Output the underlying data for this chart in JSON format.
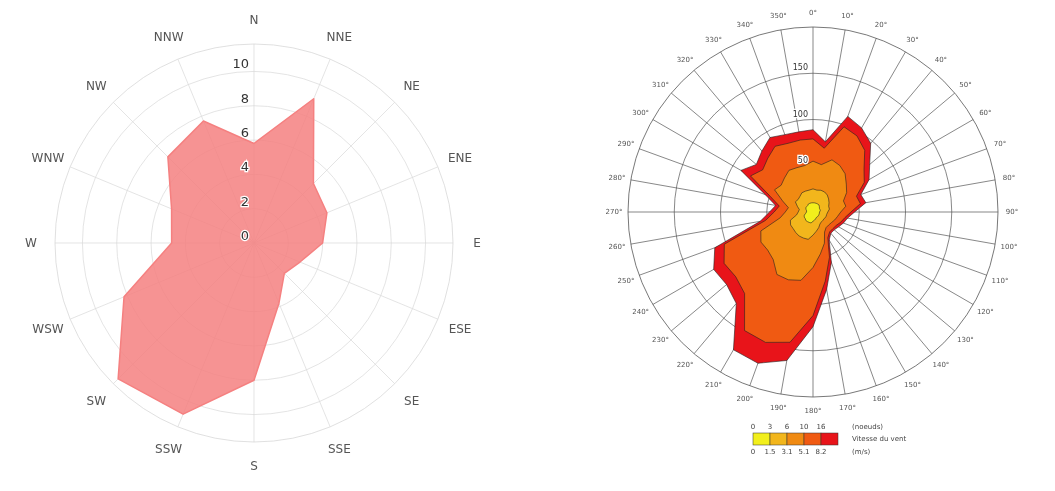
{
  "chart_data": [
    {
      "type": "radar",
      "categories": [
        "N",
        "NNE",
        "NE",
        "ENE",
        "E",
        "ESE",
        "SE",
        "SSE",
        "S",
        "SSW",
        "SW",
        "WSW",
        "W",
        "WNW",
        "NW",
        "NNW"
      ],
      "series": [
        {
          "color": "#f58080",
          "values": [
            5.8,
            9.1,
            4.9,
            4.6,
            4.0,
            2.9,
            2.5,
            3.8,
            8.0,
            10.8,
            11.2,
            8.2,
            4.8,
            5.2,
            7.1,
            7.7
          ]
        }
      ],
      "ylim": [
        0,
        11.6
      ],
      "yticks": [
        0,
        2,
        4,
        6,
        8,
        10
      ],
      "grid": true
    },
    {
      "type": "radar",
      "categories": [
        "0°",
        "10°",
        "20°",
        "30°",
        "40°",
        "50°",
        "60°",
        "70°",
        "80°",
        "90°",
        "100°",
        "110°",
        "120°",
        "130°",
        "140°",
        "150°",
        "160°",
        "170°",
        "180°",
        "190°",
        "200°",
        "210°",
        "220°",
        "230°",
        "240°",
        "250°",
        "260°",
        "270°",
        "280°",
        "290°",
        "300°",
        "310°",
        "320°",
        "330°",
        "340°",
        "350°"
      ],
      "series": [
        {
          "color": "#f2ef1c",
          "values": [
            10,
            10,
            10,
            10,
            10,
            9,
            8,
            8,
            8,
            7,
            7,
            7,
            7,
            7,
            7,
            7,
            8,
            9,
            10,
            12,
            12,
            12,
            12,
            11,
            11,
            10,
            8,
            7,
            7,
            8,
            9,
            9,
            9,
            10,
            10,
            10
          ]
        },
        {
          "color": "#f2b61c",
          "values": [
            25,
            24,
            25,
            25,
            24,
            22,
            20,
            18,
            18,
            16,
            15,
            15,
            14,
            14,
            14,
            15,
            18,
            21,
            25,
            30,
            30,
            30,
            29,
            28,
            28,
            26,
            18,
            16,
            15,
            18,
            22,
            21,
            22,
            24,
            24,
            24
          ]
        },
        {
          "color": "#f08a12",
          "values": [
            55,
            52,
            60,
            58,
            54,
            47,
            42,
            35,
            36,
            30,
            27,
            25,
            23,
            22,
            22,
            25,
            36,
            46,
            60,
            75,
            78,
            78,
            67,
            64,
            65,
            60,
            36,
            30,
            27,
            35,
            48,
            45,
            48,
            52,
            51,
            51
          ]
        },
        {
          "color": "#f05a12",
          "values": [
            79,
            70,
            98,
            95,
            87,
            72,
            64,
            50,
            52,
            41,
            35,
            32,
            29,
            28,
            28,
            32,
            52,
            76,
            112,
            143,
            150,
            148,
            115,
            109,
            111,
            102,
            52,
            42,
            37,
            49,
            78,
            71,
            76,
            82,
            79,
            79
          ]
        },
        {
          "color": "#e8141a",
          "values": [
            89,
            77,
            110,
            105,
            97,
            80,
            70,
            55,
            58,
            45,
            38,
            35,
            32,
            30,
            30,
            35,
            58,
            85,
            124,
            163,
            174,
            172,
            129,
            122,
            124,
            113,
            58,
            47,
            41,
            55,
            90,
            80,
            86,
            93,
            89,
            88
          ]
        }
      ],
      "ylim": [
        0,
        200
      ],
      "yticks": [
        50,
        100,
        150
      ],
      "grid": true,
      "legend_title": "Vitesse du vent",
      "annotations": [
        "0",
        "3",
        "6",
        "10",
        "16",
        "(noeuds)",
        "0",
        "1.5",
        "3.1",
        "5.1",
        "8.2",
        "(m/s)"
      ]
    }
  ]
}
